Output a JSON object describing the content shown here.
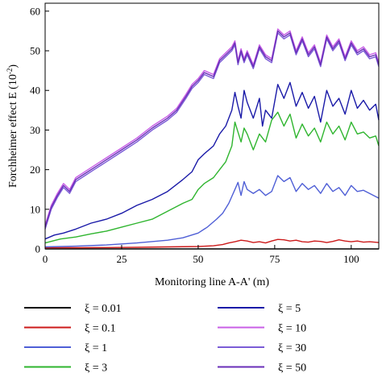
{
  "chart_data": {
    "type": "line",
    "title": "",
    "xlabel": "Monitoring line A-A' (m)",
    "ylabel_main": "Forchheimer effect E (10",
    "ylabel_exp": "-2",
    "ylabel_close": ")",
    "xlim": [
      0,
      109
    ],
    "ylim": [
      0,
      62
    ],
    "xticks": [
      0,
      25,
      50,
      75,
      100
    ],
    "xtick_labels": [
      "0",
      "25",
      "50",
      "75",
      "100"
    ],
    "yticks": [
      0,
      10,
      20,
      30,
      40,
      50,
      60
    ],
    "ytick_labels": [
      "0",
      "10",
      "20",
      "30",
      "40",
      "50",
      "60"
    ],
    "grid": false,
    "legend_position": "bottom",
    "legend_columns": 2,
    "series": [
      {
        "name": "ξ = 0.01",
        "color": "#000000",
        "x": [
          0,
          109
        ],
        "y": [
          0,
          0
        ]
      },
      {
        "name": "ξ = 0.1",
        "color": "#cc1a1a",
        "x": [
          0,
          10,
          20,
          30,
          40,
          50,
          55,
          58,
          60,
          62,
          64,
          66,
          68,
          70,
          72,
          74,
          76,
          78,
          80,
          82,
          84,
          86,
          88,
          90,
          92,
          94,
          96,
          98,
          100,
          102,
          104,
          106,
          109
        ],
        "y": [
          0.3,
          0.3,
          0.35,
          0.4,
          0.5,
          0.6,
          0.8,
          1.1,
          1.5,
          1.8,
          2.2,
          2.0,
          1.6,
          1.8,
          1.5,
          2.0,
          2.4,
          2.3,
          2.0,
          2.2,
          1.8,
          1.7,
          2.0,
          1.9,
          1.6,
          1.9,
          2.3,
          2.0,
          1.8,
          2.0,
          1.7,
          1.8,
          1.6
        ]
      },
      {
        "name": "ξ = 1",
        "color": "#4f5fd6",
        "x": [
          0,
          10,
          20,
          30,
          40,
          45,
          50,
          53,
          56,
          58,
          60,
          62,
          63,
          64,
          65,
          66,
          68,
          70,
          72,
          74,
          76,
          78,
          80,
          82,
          84,
          86,
          88,
          90,
          92,
          94,
          96,
          98,
          100,
          102,
          104,
          106,
          109
        ],
        "y": [
          0.5,
          0.7,
          1.0,
          1.5,
          2.2,
          2.8,
          4.0,
          5.5,
          7.5,
          9.0,
          11.5,
          15.0,
          16.8,
          13.5,
          17.0,
          15.0,
          14.0,
          15.0,
          13.5,
          14.5,
          18.5,
          17.0,
          18.0,
          14.5,
          16.5,
          15.0,
          16.0,
          14.0,
          16.5,
          14.5,
          15.5,
          13.5,
          16.0,
          14.5,
          14.8,
          14.0,
          12.8
        ]
      },
      {
        "name": "ξ = 3",
        "color": "#2fb52f",
        "x": [
          0,
          5,
          10,
          15,
          20,
          25,
          30,
          35,
          40,
          45,
          48,
          50,
          52,
          55,
          57,
          59,
          61,
          62,
          63,
          64,
          65,
          66,
          68,
          70,
          72,
          74,
          76,
          78,
          80,
          82,
          84,
          86,
          88,
          90,
          92,
          94,
          96,
          98,
          100,
          102,
          104,
          106,
          108,
          109
        ],
        "y": [
          1.5,
          2.5,
          3.0,
          3.8,
          4.5,
          5.5,
          6.5,
          7.5,
          9.5,
          11.5,
          12.5,
          15.0,
          16.5,
          18.0,
          20.0,
          22.0,
          26.0,
          32.0,
          29.5,
          27.0,
          30.5,
          29.0,
          25.0,
          29.0,
          27.0,
          32.5,
          34.5,
          31.0,
          34.0,
          28.0,
          31.5,
          28.5,
          30.5,
          27.0,
          32.0,
          29.0,
          31.0,
          27.5,
          32.0,
          29.0,
          29.5,
          28.0,
          28.5,
          26.0
        ]
      },
      {
        "name": "ξ = 5",
        "color": "#1a1aa8",
        "x": [
          0,
          3,
          6,
          10,
          15,
          20,
          25,
          30,
          35,
          40,
          45,
          48,
          50,
          52,
          55,
          57,
          59,
          61,
          62,
          63,
          64,
          65,
          66,
          68,
          70,
          71,
          72,
          74,
          76,
          78,
          80,
          82,
          84,
          86,
          88,
          90,
          92,
          94,
          96,
          98,
          100,
          102,
          104,
          106,
          108,
          109
        ],
        "y": [
          2.5,
          3.5,
          4.0,
          5.0,
          6.5,
          7.5,
          9.0,
          11.0,
          12.5,
          14.5,
          17.5,
          19.5,
          22.5,
          24.0,
          26.0,
          29.0,
          31.0,
          35.0,
          39.5,
          36.0,
          33.0,
          40.0,
          37.0,
          33.0,
          38.0,
          31.0,
          35.0,
          33.0,
          41.5,
          38.0,
          42.0,
          36.0,
          39.5,
          35.5,
          38.5,
          32.0,
          40.0,
          36.0,
          38.0,
          34.0,
          40.0,
          35.5,
          37.5,
          35.0,
          36.5,
          32.5
        ]
      },
      {
        "name": "ξ = 10",
        "color": "#c85fe6",
        "x": [
          0,
          2,
          4,
          6,
          8,
          10,
          13,
          16,
          20,
          25,
          30,
          35,
          40,
          43,
          46,
          48,
          50,
          52,
          55,
          57,
          59,
          61,
          62,
          63,
          64,
          65,
          66,
          68,
          70,
          72,
          74,
          76,
          78,
          80,
          82,
          84,
          86,
          88,
          90,
          92,
          94,
          96,
          98,
          100,
          102,
          104,
          106,
          108,
          109
        ],
        "y": [
          6.0,
          11.0,
          14.0,
          16.5,
          15.0,
          18.0,
          19.5,
          21.0,
          23.0,
          25.5,
          28.0,
          31.0,
          33.5,
          35.5,
          39.0,
          41.5,
          43.0,
          45.0,
          44.0,
          48.0,
          49.5,
          51.0,
          52.5,
          47.5,
          50.5,
          48.0,
          50.0,
          46.5,
          51.5,
          49.0,
          48.0,
          55.5,
          54.0,
          55.0,
          50.0,
          53.5,
          49.5,
          51.5,
          47.0,
          54.0,
          51.0,
          53.0,
          48.5,
          52.5,
          50.0,
          51.0,
          49.0,
          49.5,
          47.0
        ]
      },
      {
        "name": "ξ = 30",
        "color": "#7b5cd6",
        "x": [
          0,
          2,
          4,
          6,
          8,
          10,
          13,
          16,
          20,
          25,
          30,
          35,
          40,
          43,
          46,
          48,
          50,
          52,
          55,
          57,
          59,
          61,
          62,
          63,
          64,
          65,
          66,
          68,
          70,
          72,
          74,
          76,
          78,
          80,
          82,
          84,
          86,
          88,
          90,
          92,
          94,
          96,
          98,
          100,
          102,
          104,
          106,
          108,
          109
        ],
        "y": [
          5.0,
          10.0,
          13.0,
          15.5,
          14.0,
          17.0,
          18.5,
          20.0,
          22.0,
          24.5,
          27.0,
          30.0,
          32.5,
          34.5,
          38.0,
          40.5,
          42.0,
          44.0,
          43.0,
          47.0,
          48.5,
          50.0,
          51.5,
          46.5,
          49.5,
          47.0,
          49.0,
          45.5,
          50.5,
          48.0,
          47.0,
          54.5,
          53.0,
          54.0,
          49.0,
          52.5,
          48.5,
          50.5,
          46.0,
          53.0,
          50.0,
          52.0,
          47.5,
          51.5,
          49.0,
          50.0,
          48.0,
          48.5,
          46.0
        ]
      },
      {
        "name": "ξ = 50",
        "color": "#6a2fb8",
        "x": [
          0,
          2,
          4,
          6,
          8,
          10,
          13,
          16,
          20,
          25,
          30,
          35,
          40,
          43,
          46,
          48,
          50,
          52,
          55,
          57,
          59,
          61,
          62,
          63,
          64,
          65,
          66,
          68,
          70,
          72,
          74,
          76,
          78,
          80,
          82,
          84,
          86,
          88,
          90,
          92,
          94,
          96,
          98,
          100,
          102,
          104,
          106,
          108,
          109
        ],
        "y": [
          5.5,
          10.5,
          13.5,
          16.0,
          14.5,
          17.5,
          19.0,
          20.5,
          22.5,
          25.0,
          27.5,
          30.5,
          33.0,
          35.0,
          38.5,
          41.0,
          42.5,
          44.5,
          43.5,
          47.5,
          49.0,
          50.5,
          52.0,
          47.0,
          50.0,
          47.5,
          49.5,
          46.0,
          51.0,
          48.5,
          47.5,
          55.0,
          53.5,
          54.5,
          49.5,
          53.0,
          49.0,
          51.0,
          46.5,
          53.5,
          50.5,
          52.5,
          48.0,
          52.0,
          49.5,
          50.5,
          48.5,
          49.0,
          46.5
        ]
      }
    ]
  }
}
